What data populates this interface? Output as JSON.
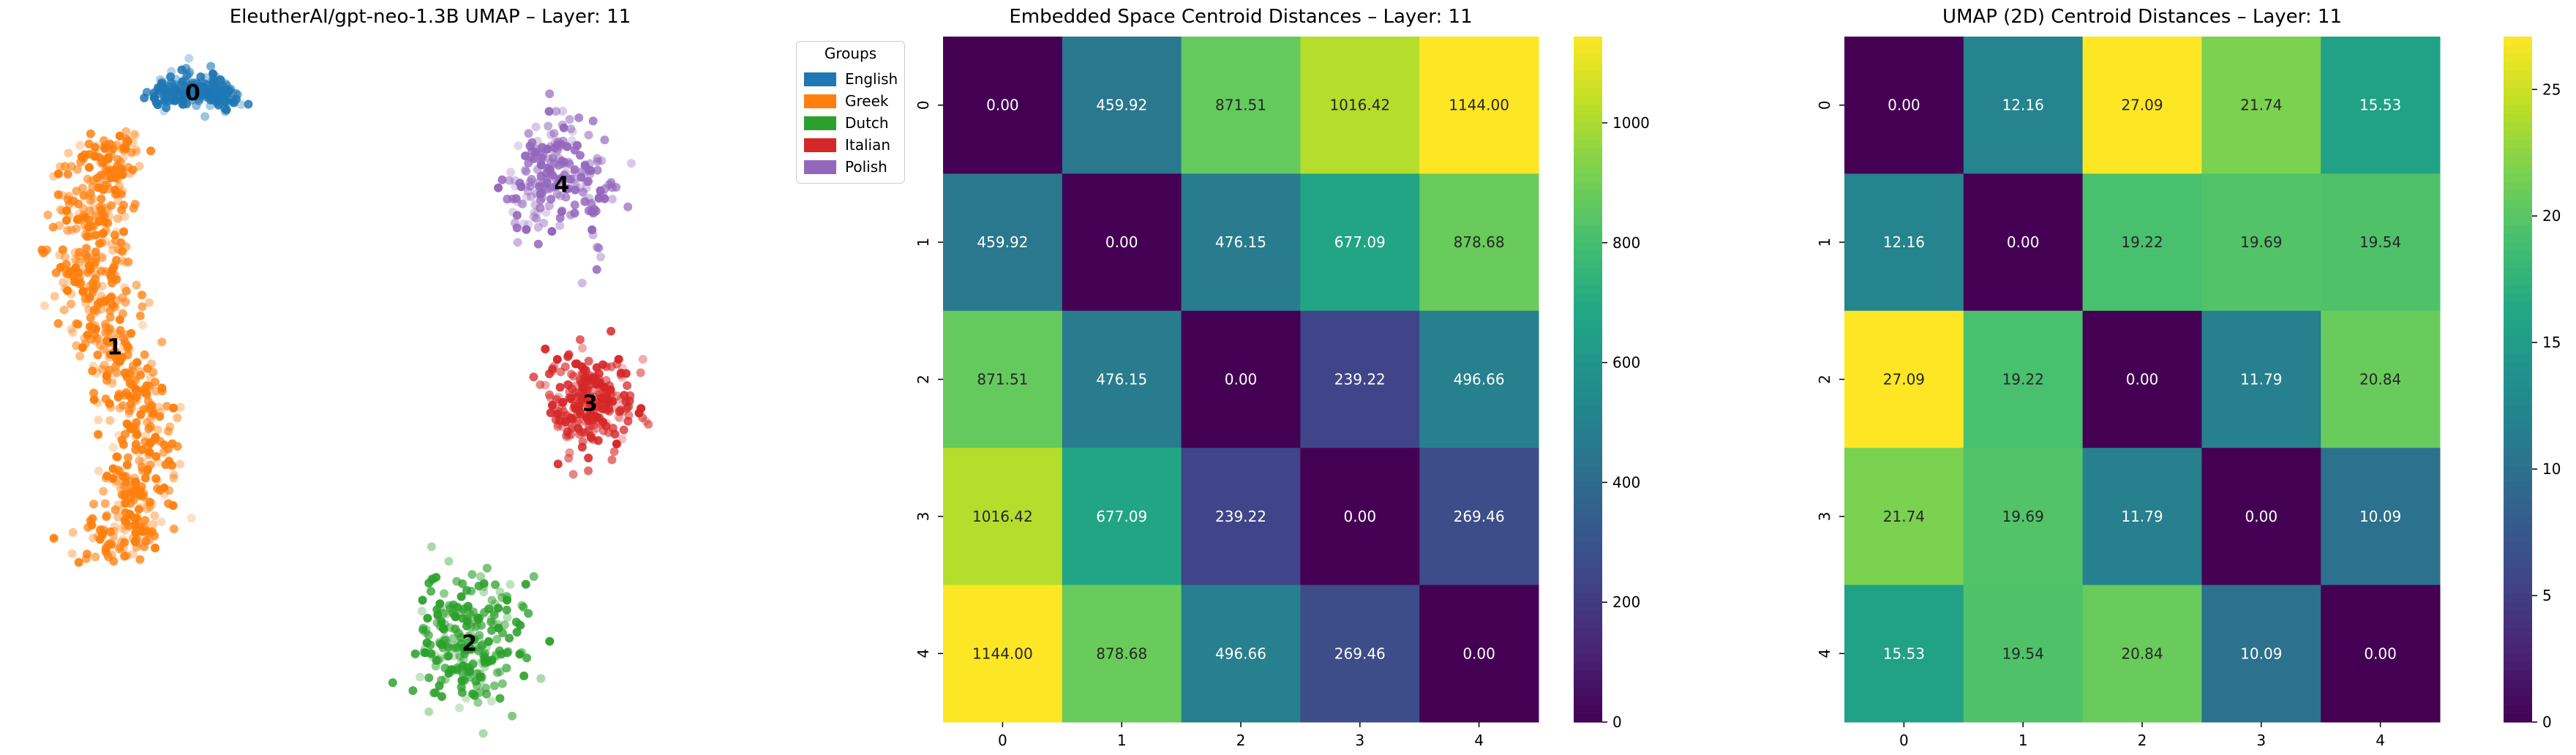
{
  "colors": {
    "english": "#1f77b4",
    "greek": "#ff7f0e",
    "dutch": "#2ca02c",
    "italian": "#d62728",
    "polish": "#9467bd"
  },
  "chart_data": [
    {
      "type": "scatter",
      "title": "EleutherAI/gpt-neo-1.3B UMAP – Layer: 11",
      "xlabel": "",
      "ylabel": "",
      "axes_visible": false,
      "legend": {
        "title": "Groups",
        "placement": "upper-right outside",
        "entries": [
          {
            "name": "English",
            "color": "#1f77b4"
          },
          {
            "name": "Greek",
            "color": "#ff7f0e"
          },
          {
            "name": "Dutch",
            "color": "#2ca02c"
          },
          {
            "name": "Italian",
            "color": "#d62728"
          },
          {
            "name": "Polish",
            "color": "#9467bd"
          }
        ]
      },
      "cluster_labels": [
        "0",
        "1",
        "2",
        "3",
        "4"
      ],
      "series": [
        {
          "name": "English",
          "cluster": "0",
          "cx": 0.22,
          "cy": 0.91,
          "spread": [
            0.05,
            0.03
          ],
          "shape": "arc"
        },
        {
          "name": "Greek",
          "cluster": "1",
          "cx": 0.11,
          "cy": 0.55,
          "spread": [
            0.08,
            0.3
          ],
          "shape": "s-curve"
        },
        {
          "name": "Dutch",
          "cluster": "2",
          "cx": 0.61,
          "cy": 0.13,
          "spread": [
            0.06,
            0.08
          ],
          "shape": "blob"
        },
        {
          "name": "Italian",
          "cluster": "3",
          "cx": 0.78,
          "cy": 0.47,
          "spread": [
            0.05,
            0.06
          ],
          "shape": "blob"
        },
        {
          "name": "Polish",
          "cluster": "4",
          "cx": 0.74,
          "cy": 0.78,
          "spread": [
            0.06,
            0.11
          ],
          "shape": "arc"
        }
      ]
    },
    {
      "type": "heatmap",
      "title": "Embedded Space Centroid Distances – Layer: 11",
      "xlabel": "",
      "ylabel": "",
      "categories": [
        "0",
        "1",
        "2",
        "3",
        "4"
      ],
      "values": [
        [
          0.0,
          459.92,
          871.51,
          1016.42,
          1144.0
        ],
        [
          459.92,
          0.0,
          476.15,
          677.09,
          878.68
        ],
        [
          871.51,
          476.15,
          0.0,
          239.22,
          496.66
        ],
        [
          1016.42,
          677.09,
          239.22,
          0.0,
          269.46
        ],
        [
          1144.0,
          878.68,
          496.66,
          269.46,
          0.0
        ]
      ],
      "value_format": "2f",
      "colormap": "viridis",
      "vmin": 0,
      "vmax": 1144.0,
      "colorbar_ticks": [
        0,
        200,
        400,
        600,
        800,
        1000
      ]
    },
    {
      "type": "heatmap",
      "title": "UMAP (2D) Centroid Distances – Layer: 11",
      "xlabel": "",
      "ylabel": "",
      "categories": [
        "0",
        "1",
        "2",
        "3",
        "4"
      ],
      "values": [
        [
          0.0,
          12.16,
          27.09,
          21.74,
          15.53
        ],
        [
          12.16,
          0.0,
          19.22,
          19.69,
          19.54
        ],
        [
          27.09,
          19.22,
          0.0,
          11.79,
          20.84
        ],
        [
          21.74,
          19.69,
          11.79,
          0.0,
          10.09
        ],
        [
          15.53,
          19.54,
          20.84,
          10.09,
          0.0
        ]
      ],
      "value_format": "2f",
      "colormap": "viridis",
      "vmin": 0,
      "vmax": 27.09,
      "colorbar_ticks": [
        0,
        5,
        10,
        15,
        20,
        25
      ]
    }
  ]
}
